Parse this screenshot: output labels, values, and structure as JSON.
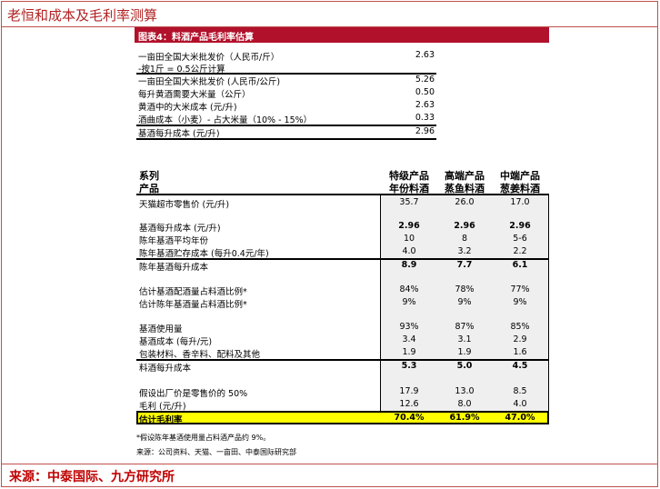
{
  "page_title": "老恒和成本及毛利率测算",
  "source": "来源：中泰国际、九方研究所",
  "figure_title": "图表4：料酒产品毛利率估算",
  "upper_table": [
    {
      "label": "一亩田全国大米批发价（人民币/斤）",
      "value": "2.63"
    },
    {
      "label": "-按1斤 = 0.5公斤计算",
      "value": ""
    },
    {
      "label": "一亩田全国大米批发价 (人民币/公斤)",
      "value": "5.26"
    },
    {
      "label": "每升黄酒需要大米量（公斤）",
      "value": "0.50"
    },
    {
      "label": "黄酒中的大米成本  (元/升)",
      "value": "2.63"
    },
    {
      "label": "酒曲成本（小麦）- 占大米量（10% - 15%）",
      "value": "0.33"
    },
    {
      "label": "基酒每升成本  (元/升)",
      "value": "2.96"
    }
  ],
  "main_header": {
    "label_line1": "系列",
    "label_line2": "产品",
    "col1_line1": "特级产品",
    "col1_line2": "年份料酒",
    "col2_line1": "高端产品",
    "col2_line2": "蒸鱼料酒",
    "col3_line1": "中端产品",
    "col3_line2": "葱姜料酒"
  },
  "main_rows": {
    "r1": {
      "label": "天猫超市零售价 (元/升)",
      "v1": "35.7",
      "v2": "26.0",
      "v3": "17.0"
    },
    "r2": {
      "label": "基酒每升成本 (元/升)",
      "v1": "2.96",
      "v2": "2.96",
      "v3": "2.96"
    },
    "r3": {
      "label": "陈年基酒平均年份",
      "v1": "10",
      "v2": "8",
      "v3": "5-6"
    },
    "r4": {
      "label": "陈年基酒贮存成本 (每升0.4元/年)",
      "v1": "4.0",
      "v2": "3.2",
      "v3": "2.2"
    },
    "r5": {
      "label": "陈年基酒每升成本",
      "v1": "8.9",
      "v2": "7.7",
      "v3": "6.1"
    },
    "r6": {
      "label": "估计基酒配酒量占料酒比例*",
      "v1": "84%",
      "v2": "78%",
      "v3": "77%"
    },
    "r7": {
      "label": "估计陈年基酒量占料酒比例*",
      "v1": "9%",
      "v2": "9%",
      "v3": "9%"
    },
    "r8": {
      "label": "基酒使用量",
      "v1": "93%",
      "v2": "87%",
      "v3": "85%"
    },
    "r9": {
      "label": "基酒成本 (每升/元)",
      "v1": "3.4",
      "v2": "3.1",
      "v3": "2.9"
    },
    "r10": {
      "label": "包装材料、香辛料、配料及其他",
      "v1": "1.9",
      "v2": "1.9",
      "v3": "1.6"
    },
    "r11": {
      "label": "料酒每升成本",
      "v1": "5.3",
      "v2": "5.0",
      "v3": "4.5"
    },
    "r12": {
      "label": "假设出厂价是零售价的 50%",
      "v1": "17.9",
      "v2": "13.0",
      "v3": "8.5"
    },
    "r13": {
      "label": "毛利 (元/升)",
      "v1": "12.6",
      "v2": "8.0",
      "v3": "4.0"
    },
    "r14": {
      "label": "估计毛利率",
      "v1": "70.4%",
      "v2": "61.9%",
      "v3": "47.0%"
    }
  },
  "footnote": "*假设陈年基酒使用量占料酒产品约 9%。",
  "inner_source": "来源：公司资料、天猫、一亩田、中泰国际研究部"
}
